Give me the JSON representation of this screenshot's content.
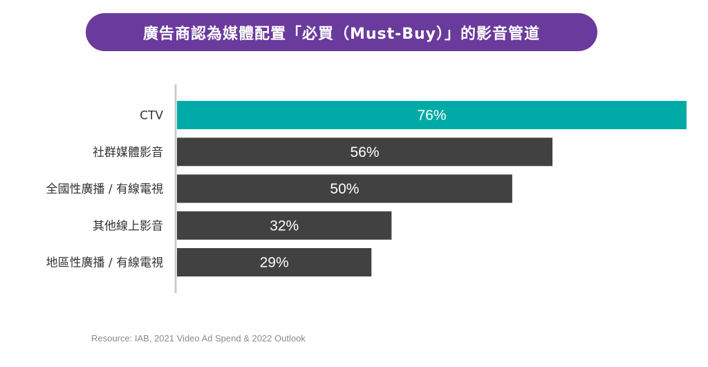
{
  "chart_data": {
    "type": "bar",
    "orientation": "horizontal",
    "title": "廣告商認為媒體配置「必買（Must-Buy）」的影音管道",
    "categories": [
      "CTV",
      "社群媒體影音",
      "全國性廣播 / 有線電視",
      "其他線上影音",
      "地區性廣播 / 有線電視"
    ],
    "values": [
      76,
      56,
      50,
      32,
      29
    ],
    "value_labels": [
      "76%",
      "56%",
      "50%",
      "32%",
      "29%"
    ],
    "unit": "%",
    "xlim": [
      0,
      76
    ],
    "grid": false,
    "legend": "none",
    "colors": {
      "highlight": "#00aaa6",
      "default": "#414141",
      "axis": "#cccccc",
      "title_bg": "#6a3b9c"
    }
  },
  "footer": {
    "source": "Resource: IAB, 2021 Video Ad Spend & 2022 Outlook"
  }
}
